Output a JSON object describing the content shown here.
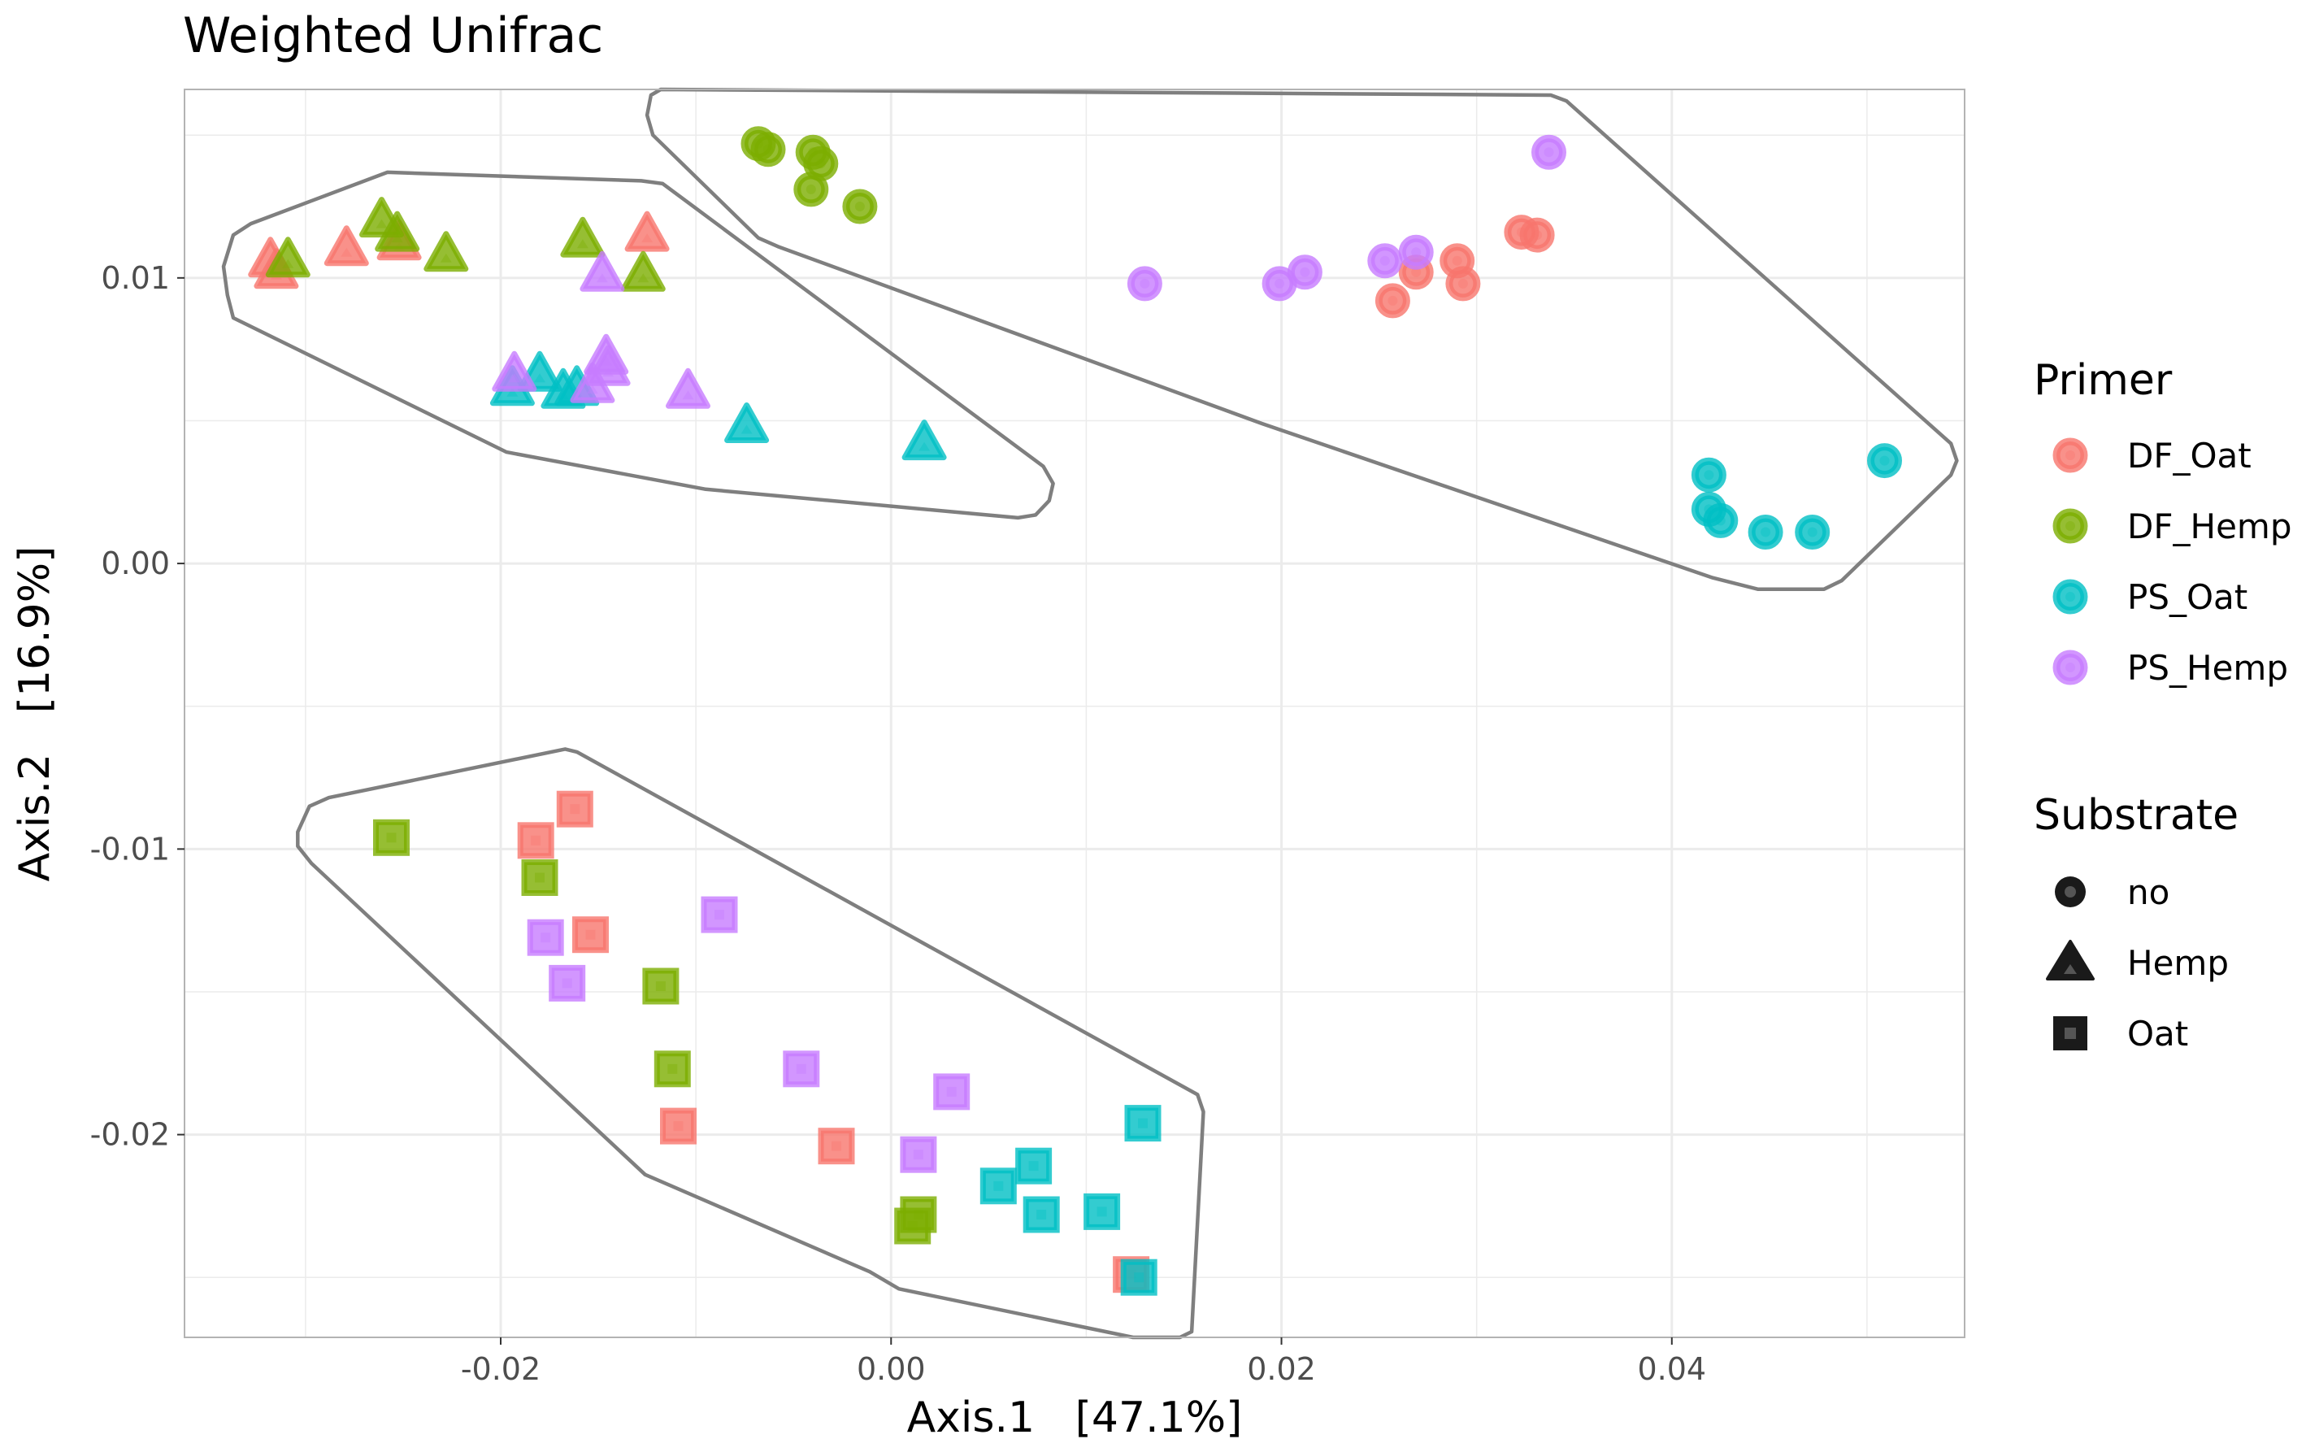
{
  "chart_data": {
    "type": "scatter",
    "title": "Weighted Unifrac",
    "xlabel": "Axis.1   [47.1%]",
    "ylabel": "Axis.2   [16.9%]",
    "xlim": [
      -0.0362,
      0.055
    ],
    "ylim": [
      -0.0271,
      0.0166
    ],
    "x_ticks": [
      -0.02,
      0.0,
      0.02,
      0.04
    ],
    "x_tick_labels": [
      "-0.02",
      "0.00",
      "0.02",
      "0.04"
    ],
    "y_ticks": [
      -0.02,
      -0.01,
      0.0,
      0.01
    ],
    "y_tick_labels": [
      "-0.02",
      "-0.01",
      "0.00",
      "0.01"
    ],
    "grid": true,
    "colors": {
      "DF_Oat": "#F8766D",
      "DF_Hemp": "#7CAE00",
      "PS_Oat": "#00BFC4",
      "PS_Hemp": "#C77CFF",
      "hull": "#7f7f7f",
      "grid": "#ebebeb",
      "panel_border": "#b3b3b3",
      "axis_text": "#4d4d4d",
      "legend_key": "#1a1a1a"
    },
    "legend": {
      "position": "right",
      "primer_title": "Primer",
      "primer_items": [
        "DF_Oat",
        "DF_Hemp",
        "PS_Oat",
        "PS_Hemp"
      ],
      "substrate_title": "Substrate",
      "substrate_items": [
        {
          "label": "no",
          "shape": "circle"
        },
        {
          "label": "Hemp",
          "shape": "triangle"
        },
        {
          "label": "Oat",
          "shape": "square"
        }
      ]
    },
    "series": [
      {
        "name": "DF_Oat",
        "shape": "circle",
        "points": [
          [
            0.0257,
            0.0092
          ],
          [
            0.0269,
            0.0102
          ],
          [
            0.029,
            0.0106
          ],
          [
            0.0293,
            0.0098
          ],
          [
            0.0323,
            0.0116
          ],
          [
            0.0331,
            0.0115
          ]
        ]
      },
      {
        "name": "DF_Hemp",
        "shape": "circle",
        "points": [
          [
            -0.0068,
            0.0147
          ],
          [
            -0.0063,
            0.0145
          ],
          [
            -0.004,
            0.0144
          ],
          [
            -0.0036,
            0.014
          ],
          [
            -0.0041,
            0.0131
          ],
          [
            -0.0016,
            0.0125
          ]
        ]
      },
      {
        "name": "PS_Oat",
        "shape": "circle",
        "points": [
          [
            0.0419,
            0.0031
          ],
          [
            0.0419,
            0.0019
          ],
          [
            0.0425,
            0.0015
          ],
          [
            0.0448,
            0.0011
          ],
          [
            0.0472,
            0.0011
          ],
          [
            0.0509,
            0.0036
          ]
        ]
      },
      {
        "name": "PS_Hemp",
        "shape": "circle",
        "points": [
          [
            0.013,
            0.0098
          ],
          [
            0.0199,
            0.0098
          ],
          [
            0.0212,
            0.0102
          ],
          [
            0.0253,
            0.0106
          ],
          [
            0.0269,
            0.0109
          ],
          [
            0.0337,
            0.0144
          ]
        ]
      },
      {
        "name": "DF_Oat",
        "shape": "triangle",
        "points": [
          [
            -0.0318,
            0.0106
          ],
          [
            -0.0315,
            0.0102
          ],
          [
            -0.0279,
            0.011
          ],
          [
            -0.0252,
            0.0112
          ],
          [
            -0.0125,
            0.0115
          ]
        ]
      },
      {
        "name": "DF_Hemp",
        "shape": "triangle",
        "points": [
          [
            -0.0309,
            0.0106
          ],
          [
            -0.0261,
            0.012
          ],
          [
            -0.0253,
            0.0115
          ],
          [
            -0.0228,
            0.0108
          ],
          [
            -0.0158,
            0.0113
          ],
          [
            -0.0127,
            0.0101
          ]
        ]
      },
      {
        "name": "PS_Oat",
        "shape": "triangle",
        "points": [
          [
            -0.0194,
            0.0061
          ],
          [
            -0.018,
            0.0066
          ],
          [
            -0.0168,
            0.006
          ],
          [
            -0.0161,
            0.0061
          ],
          [
            -0.0074,
            0.0048
          ],
          [
            0.0017,
            0.0042
          ]
        ]
      },
      {
        "name": "PS_Hemp",
        "shape": "triangle",
        "points": [
          [
            -0.0193,
            0.0066
          ],
          [
            -0.0148,
            0.0101
          ],
          [
            -0.0145,
            0.0068
          ],
          [
            -0.0146,
            0.0072
          ],
          [
            -0.0153,
            0.0062
          ],
          [
            -0.0104,
            0.006
          ]
        ]
      },
      {
        "name": "DF_Oat",
        "shape": "square",
        "points": [
          [
            -0.0162,
            -0.0086
          ],
          [
            -0.0182,
            -0.0097
          ],
          [
            -0.0154,
            -0.013
          ],
          [
            -0.0109,
            -0.0197
          ],
          [
            -0.0028,
            -0.0204
          ],
          [
            0.0123,
            -0.0249
          ]
        ]
      },
      {
        "name": "DF_Hemp",
        "shape": "square",
        "points": [
          [
            -0.0256,
            -0.0096
          ],
          [
            -0.018,
            -0.011
          ],
          [
            -0.0118,
            -0.0148
          ],
          [
            -0.0112,
            -0.0177
          ],
          [
            0.0014,
            -0.0228
          ],
          [
            0.0011,
            -0.0232
          ]
        ]
      },
      {
        "name": "PS_Oat",
        "shape": "square",
        "points": [
          [
            0.0129,
            -0.0196
          ],
          [
            0.0073,
            -0.0211
          ],
          [
            0.0055,
            -0.0218
          ],
          [
            0.0077,
            -0.0228
          ],
          [
            0.0108,
            -0.0227
          ],
          [
            0.0127,
            -0.025
          ]
        ]
      },
      {
        "name": "PS_Hemp",
        "shape": "square",
        "points": [
          [
            -0.0088,
            -0.0123
          ],
          [
            -0.0177,
            -0.0131
          ],
          [
            -0.0166,
            -0.0147
          ],
          [
            -0.0046,
            -0.0177
          ],
          [
            0.0031,
            -0.0185
          ],
          [
            0.0014,
            -0.0207
          ]
        ]
      }
    ],
    "hulls": [
      {
        "name": "hemp-substrate-hull",
        "points": [
          [
            -0.0342,
            0.0104
          ],
          [
            -0.034,
            0.0094
          ],
          [
            -0.0337,
            0.0086
          ],
          [
            -0.0197,
            0.0039
          ],
          [
            -0.0095,
            0.0026
          ],
          [
            0.0065,
            0.0016
          ],
          [
            0.0074,
            0.0017
          ],
          [
            0.0081,
            0.0022
          ],
          [
            0.0083,
            0.0028
          ],
          [
            0.0078,
            0.0034
          ],
          [
            -0.0117,
            0.0133
          ],
          [
            -0.0128,
            0.0134
          ],
          [
            -0.0258,
            0.0137
          ],
          [
            -0.0328,
            0.0119
          ],
          [
            -0.0337,
            0.0115
          ]
        ]
      },
      {
        "name": "no-substrate-hull",
        "points": [
          [
            -0.0118,
            0.0166
          ],
          [
            -0.0123,
            0.0164
          ],
          [
            -0.0125,
            0.0157
          ],
          [
            -0.0122,
            0.015
          ],
          [
            -0.0068,
            0.0114
          ],
          [
            -0.0058,
            0.0111
          ],
          [
            0.019,
            0.0049
          ],
          [
            0.0421,
            -0.0005
          ],
          [
            0.0444,
            -0.0009
          ],
          [
            0.0478,
            -0.0009
          ],
          [
            0.0487,
            -0.0006
          ],
          [
            0.0543,
            0.0031
          ],
          [
            0.0546,
            0.0036
          ],
          [
            0.0543,
            0.0042
          ],
          [
            0.0346,
            0.0162
          ],
          [
            0.0338,
            0.0164
          ]
        ]
      },
      {
        "name": "oat-substrate-hull",
        "points": [
          [
            -0.0304,
            -0.0094
          ],
          [
            -0.0298,
            -0.0085
          ],
          [
            -0.0288,
            -0.0082
          ],
          [
            -0.0167,
            -0.0065
          ],
          [
            -0.0161,
            -0.0066
          ],
          [
            0.0157,
            -0.0186
          ],
          [
            0.016,
            -0.0192
          ],
          [
            0.0154,
            -0.0269
          ],
          [
            0.0148,
            -0.0271
          ],
          [
            0.0124,
            -0.0271
          ],
          [
            0.0004,
            -0.0254
          ],
          [
            -0.0011,
            -0.0248
          ],
          [
            -0.0126,
            -0.0214
          ],
          [
            -0.0297,
            -0.0105
          ],
          [
            -0.0304,
            -0.0099
          ]
        ]
      }
    ]
  }
}
